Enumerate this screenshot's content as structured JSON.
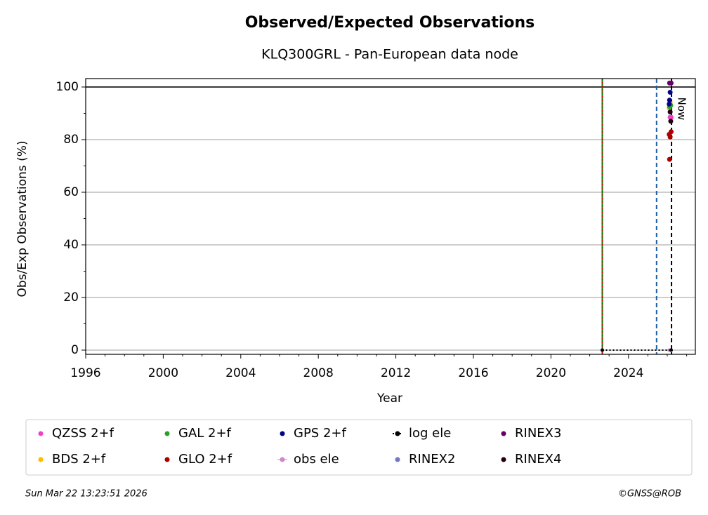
{
  "chart_data": {
    "type": "scatter",
    "title": "Observed/Expected Observations",
    "subtitle": "KLQ300GRL - Pan-European data node",
    "x_label": "Year",
    "y_label": "Obs/Exp Observations (%)",
    "xlim": [
      1996,
      2027.45
    ],
    "ylim": [
      -1.6,
      103.2
    ],
    "xticks": [
      1996,
      2000,
      2004,
      2008,
      2012,
      2016,
      2020,
      2024
    ],
    "xminorticks": [
      1997,
      1998,
      1999,
      2001,
      2002,
      2003,
      2005,
      2006,
      2007,
      2009,
      2010,
      2011,
      2013,
      2014,
      2015,
      2017,
      2018,
      2019,
      2021,
      2022,
      2023,
      2025,
      2026,
      2027
    ],
    "yticks": [
      0,
      20,
      40,
      60,
      80,
      100
    ],
    "yminorticks": [
      10,
      30,
      50,
      70,
      90
    ],
    "grid": true,
    "series": [
      {
        "name": "QZSS 2+f",
        "color": "#ee44cc",
        "style": "marker",
        "x": [
          2026.15,
          2026.2
        ],
        "values": [
          88.5,
          88.5
        ]
      },
      {
        "name": "BDS 2+f",
        "color": "#ffbb00",
        "style": "marker",
        "x": [
          2026.1,
          2026.15
        ],
        "values": [
          92,
          94
        ]
      },
      {
        "name": "GAL 2+f",
        "color": "#2ca02c",
        "style": "marker",
        "x": [
          2026.12,
          2026.18
        ],
        "values": [
          92.5,
          93
        ]
      },
      {
        "name": "GLO 2+f",
        "color": "#aa0000",
        "style": "marker",
        "x": [
          2026.1,
          2026.15,
          2026.12,
          2026.2
        ],
        "values": [
          82,
          81,
          72.5,
          83
        ]
      },
      {
        "name": "GPS 2+f",
        "color": "#000088",
        "style": "marker",
        "x": [
          2026.15,
          2026.12,
          2026.1
        ],
        "values": [
          98,
          95,
          93.5
        ]
      },
      {
        "name": "obs ele",
        "color": "#cc88cc",
        "style": "line",
        "x": [
          2026.1,
          2026.2
        ],
        "values": [
          0,
          0
        ]
      },
      {
        "name": "log ele",
        "color": "#000000",
        "style": "dotted",
        "x": [
          2022.65,
          2026.2
        ],
        "values": [
          0,
          0
        ]
      },
      {
        "name": "RINEX2",
        "color": "#7777bb",
        "style": "marker",
        "x": [],
        "values": []
      },
      {
        "name": "RINEX3",
        "color": "#660066",
        "style": "marker",
        "x": [
          2026.12,
          2026.2
        ],
        "values": [
          101.5,
          101.5
        ]
      },
      {
        "name": "RINEX4",
        "color": "#220011",
        "style": "marker",
        "x": [
          2026.15,
          2026.18
        ],
        "values": [
          90.5,
          87
        ]
      }
    ],
    "vlines": [
      {
        "x": 2022.65,
        "color": "#008000",
        "style": "solid"
      },
      {
        "x": 2022.65,
        "color": "#cc0000",
        "style": "dotted"
      },
      {
        "x": 2025.45,
        "color": "#1f5fa0",
        "style": "dashed"
      },
      {
        "x": 2026.22,
        "color": "#000000",
        "style": "dashed"
      }
    ],
    "hlines": [
      {
        "y": 100,
        "color": "#000000"
      }
    ],
    "annotation": {
      "text": "Now",
      "x": 2026.22
    },
    "footer_left": "Sun Mar 22 13:23:51 2026",
    "footer_right": "©GNSS@ROB"
  }
}
